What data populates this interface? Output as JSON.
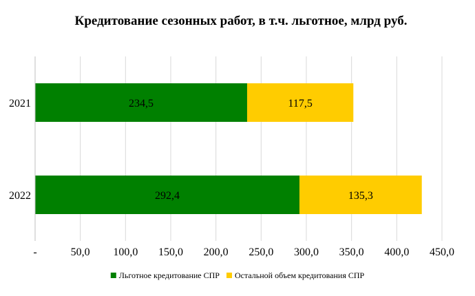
{
  "chart_data": {
    "type": "bar",
    "orientation": "horizontal",
    "stacked": true,
    "title": "Кредитование сезонных работ, в т.ч. льготное, млрд руб.",
    "categories": [
      "2021",
      "2022"
    ],
    "series": [
      {
        "name": "Льготное кредитование СПР",
        "values": [
          234.5,
          292.4
        ],
        "value_labels": [
          "234,5",
          "292,4"
        ],
        "color": "#008000"
      },
      {
        "name": "Остальной объем кредитования СПР",
        "values": [
          117.5,
          135.3
        ],
        "value_labels": [
          "117,5",
          "135,3"
        ],
        "color": "#FFCC00"
      }
    ],
    "xlim": [
      0,
      450
    ],
    "x_ticks": [
      0,
      50,
      100,
      150,
      200,
      250,
      300,
      350,
      400,
      450
    ],
    "x_tick_labels": [
      "-",
      "50,0",
      "100,0",
      "150,0",
      "200,0",
      "250,0",
      "300,0",
      "350,0",
      "400,0",
      "450,0"
    ],
    "grid": true,
    "gridline_color": "#d9d9d9",
    "legend_position": "bottom"
  }
}
